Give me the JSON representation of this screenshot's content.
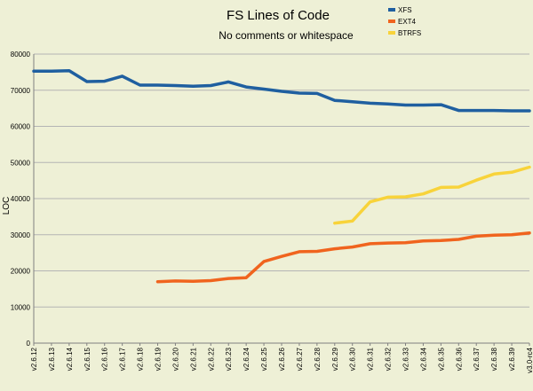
{
  "chart_data": {
    "type": "line",
    "title": "FS Lines of Code",
    "subtitle": "No comments or whitespace",
    "xlabel": "",
    "ylabel": "LOC",
    "ylim": [
      0,
      80000
    ],
    "yticks": [
      0,
      10000,
      20000,
      30000,
      40000,
      50000,
      60000,
      70000,
      80000
    ],
    "grid": "horizontal",
    "legend": "top-right",
    "categories": [
      "v2.6.12",
      "v2.6.13",
      "v2.6.14",
      "v2.6.15",
      "v2.6.16",
      "v2.6.17",
      "v2.6.18",
      "v2.6.19",
      "v2.6.20",
      "v2.6.21",
      "v2.6.22",
      "v2.6.23",
      "v2.6.24",
      "v2.6.25",
      "v2.6.26",
      "v2.6.27",
      "v2.6.28",
      "v2.6.29",
      "v2.6.30",
      "v2.6.31",
      "v2.6.32",
      "v2.6.33",
      "v2.6.34",
      "v2.6.35",
      "v2.6.36",
      "v2.6.37",
      "v2.6.38",
      "v2.6.39",
      "v3.0-rc4"
    ],
    "series": [
      {
        "name": "XFS",
        "color": "#1f5fa0",
        "values": [
          75300,
          75300,
          75400,
          72400,
          72500,
          73900,
          71400,
          71400,
          71300,
          71100,
          71300,
          72300,
          70900,
          70300,
          69700,
          69200,
          69100,
          67200,
          66800,
          66400,
          66200,
          65900,
          65900,
          66000,
          64400,
          64400,
          64400,
          64300,
          64300
        ]
      },
      {
        "name": "EXT4",
        "color": "#f0641e",
        "values": [
          null,
          null,
          null,
          null,
          null,
          null,
          null,
          17000,
          17200,
          17100,
          17300,
          17900,
          18100,
          22600,
          24000,
          25300,
          25400,
          26100,
          26600,
          27500,
          27700,
          27800,
          28300,
          28400,
          28700,
          29600,
          29900,
          30000,
          30500
        ]
      },
      {
        "name": "BTRFS",
        "color": "#f8d33a",
        "values": [
          null,
          null,
          null,
          null,
          null,
          null,
          null,
          null,
          null,
          null,
          null,
          null,
          null,
          null,
          null,
          null,
          null,
          33200,
          33800,
          39100,
          40400,
          40500,
          41300,
          43100,
          43200,
          45100,
          46800,
          47300,
          48700
        ]
      }
    ]
  }
}
